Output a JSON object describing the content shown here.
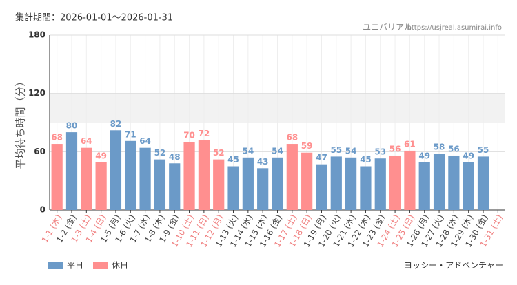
{
  "chart_data": {
    "type": "bar",
    "period": "集計期間：2026-01-01～2026-01-31",
    "source": "ユニバリアル",
    "url": "https://usjreal.asumirai.info",
    "y_label": "平均待ち時間（分）",
    "attraction": "ヨッシー・アドベンチャー",
    "categories": [
      "1-1 (木)",
      "1-2 (金)",
      "1-3 (土)",
      "1-4 (日)",
      "1-5 (月)",
      "1-6 (火)",
      "1-7 (水)",
      "1-8 (木)",
      "1-9 (金)",
      "1-10 (土)",
      "1-11 (日)",
      "1-12 (月)",
      "1-13 (火)",
      "1-14 (水)",
      "1-15 (木)",
      "1-16 (金)",
      "1-17 (土)",
      "1-18 (日)",
      "1-19 (月)",
      "1-20 (火)",
      "1-21 (水)",
      "1-22 (木)",
      "1-23 (金)",
      "1-24 (土)",
      "1-25 (日)",
      "1-26 (月)",
      "1-27 (火)",
      "1-28 (水)",
      "1-29 (木)",
      "1-30 (金)",
      "1-31 (土)"
    ],
    "category_colors": [
      "#f08080",
      "#444444",
      "#f08080",
      "#f08080",
      "#444444",
      "#444444",
      "#444444",
      "#444444",
      "#444444",
      "#f08080",
      "#f08080",
      "#f08080",
      "#444444",
      "#444444",
      "#444444",
      "#444444",
      "#f08080",
      "#f08080",
      "#444444",
      "#444444",
      "#444444",
      "#444444",
      "#444444",
      "#f08080",
      "#f08080",
      "#444444",
      "#444444",
      "#444444",
      "#444444",
      "#444444",
      "#f08080"
    ],
    "series": [
      {
        "name": "平日",
        "color": "#6b9ac8",
        "values": [
          null,
          80,
          null,
          null,
          82,
          71,
          64,
          52,
          48,
          null,
          null,
          null,
          45,
          54,
          43,
          54,
          null,
          null,
          47,
          55,
          54,
          45,
          53,
          null,
          null,
          49,
          58,
          56,
          49,
          55,
          null
        ]
      },
      {
        "name": "休日",
        "color": "#ff8f8f",
        "values": [
          68,
          null,
          64,
          49,
          null,
          null,
          null,
          null,
          null,
          70,
          72,
          52,
          null,
          null,
          null,
          null,
          68,
          59,
          null,
          null,
          null,
          null,
          null,
          56,
          61,
          null,
          null,
          null,
          null,
          null,
          null
        ]
      }
    ],
    "ylim": [
      0,
      180
    ],
    "yticks": [
      0,
      60,
      120,
      180
    ],
    "band": [
      90,
      120
    ],
    "grid": true
  }
}
